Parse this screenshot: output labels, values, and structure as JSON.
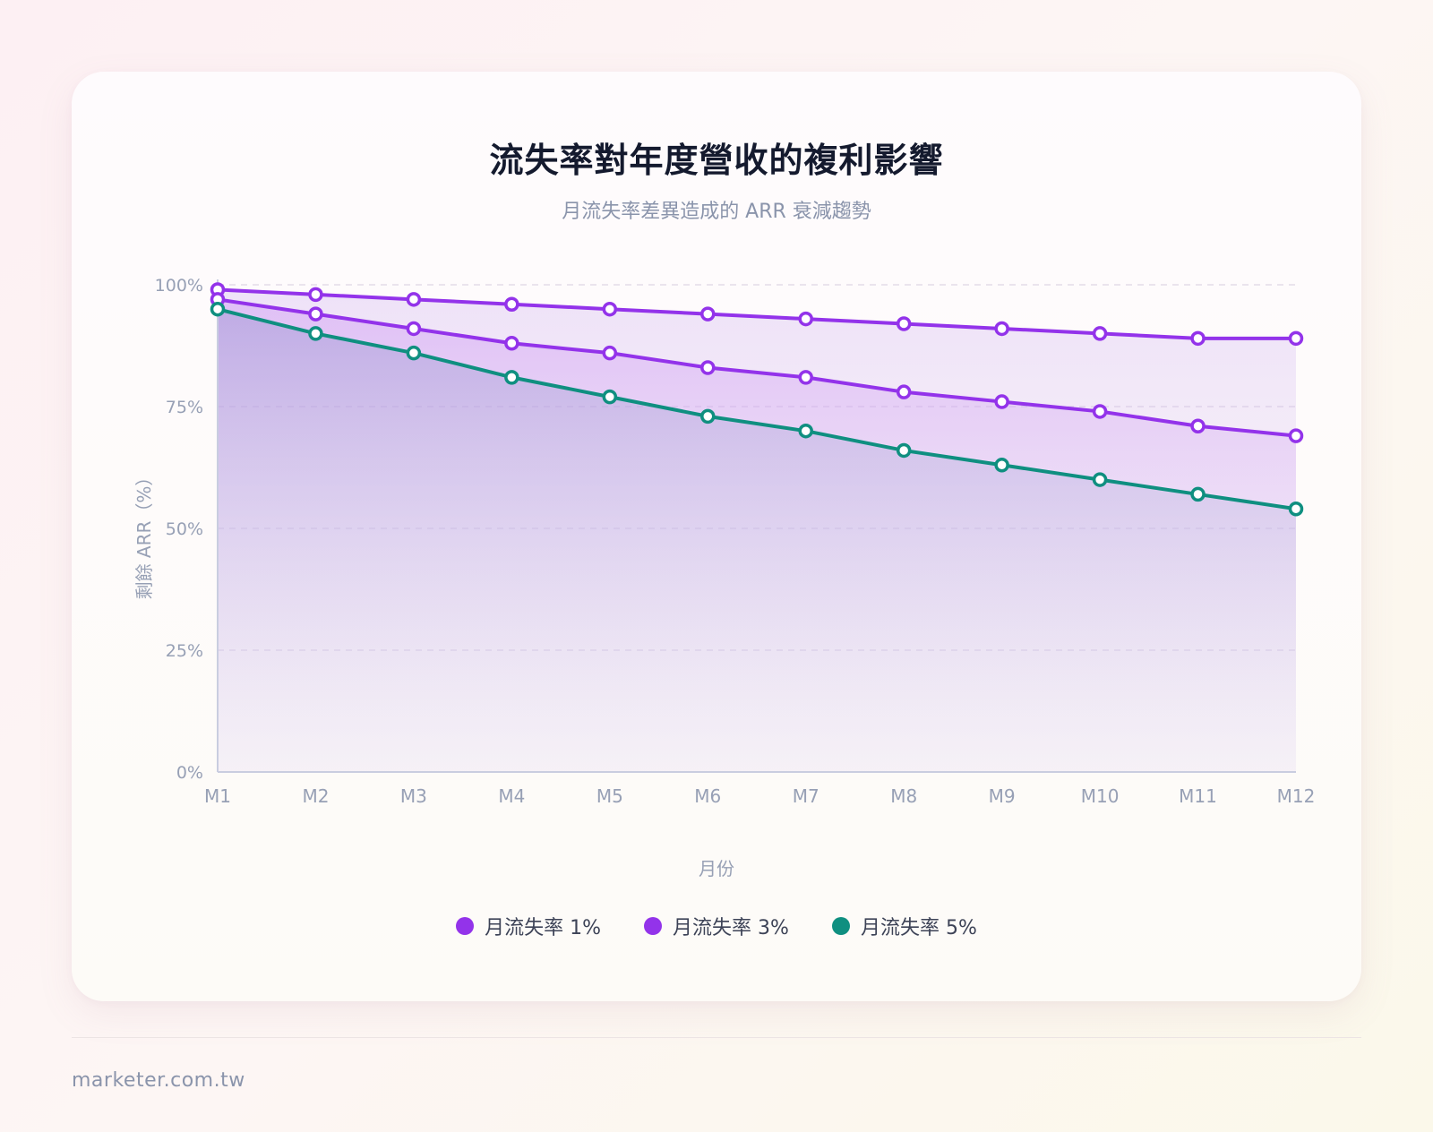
{
  "header": {
    "title": "流失率對年度營收的複利影響",
    "subtitle": "月流失率差異造成的 ARR 衰減趨勢"
  },
  "footer": {
    "site": "marketer.com.tw"
  },
  "colors": {
    "churn_1": "#9333ea",
    "churn_3": "#9333ea",
    "churn_5": "#0f8f80",
    "grid": "#e3dde8",
    "axis": "#c9cde0",
    "tick_text": "#97a0b5"
  },
  "chart_data": {
    "type": "area",
    "title": "流失率對年度營收的複利影響",
    "subtitle": "月流失率差異造成的 ARR 衰減趨勢",
    "xlabel": "月份",
    "ylabel": "剩餘 ARR（%）",
    "categories": [
      "M1",
      "M2",
      "M3",
      "M4",
      "M5",
      "M6",
      "M7",
      "M8",
      "M9",
      "M10",
      "M11",
      "M12"
    ],
    "y_ticks": [
      "0%",
      "25%",
      "50%",
      "75%",
      "100%"
    ],
    "ylim": [
      0,
      100
    ],
    "grid": true,
    "legend_position": "bottom",
    "series": [
      {
        "name": "月流失率 1%",
        "values": [
          99,
          98,
          97,
          96,
          95,
          94,
          93,
          92,
          91,
          90,
          89,
          89
        ]
      },
      {
        "name": "月流失率 3%",
        "values": [
          97,
          94,
          91,
          88,
          86,
          83,
          81,
          78,
          76,
          74,
          71,
          69
        ]
      },
      {
        "name": "月流失率 5%",
        "values": [
          95,
          90,
          86,
          81,
          77,
          73,
          70,
          66,
          63,
          60,
          57,
          54
        ]
      }
    ]
  }
}
